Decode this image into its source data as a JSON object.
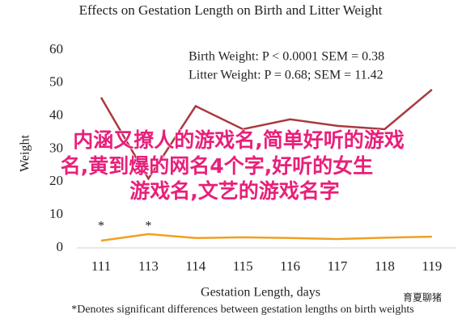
{
  "chart_data": {
    "type": "line",
    "title": "Effects on Gestation Length on Birth and Litter Weight",
    "x_label": "Gestation Length, days",
    "y_label": "Weight",
    "footnote": "*Denotes significant differences between gestation lengths on birth weights",
    "categories": [
      "111",
      "113",
      "114",
      "115",
      "116",
      "117",
      "118",
      "119"
    ],
    "series": [
      {
        "name": "Birth Weight",
        "color": "#f0a020",
        "values": [
          2.2,
          4.2,
          3,
          3.2,
          3,
          2.7,
          3.1,
          3.4
        ]
      },
      {
        "name": "Litter Weight",
        "color": "#a93a3f",
        "values": [
          45.6,
          21,
          43,
          36,
          39,
          37,
          36,
          48
        ]
      }
    ],
    "annotations": [
      {
        "text": "Birth Weight: P < 0.0001 SEM = 0.38"
      },
      {
        "text": "Litter Weight: P = 0.68; SEM = 11.42"
      },
      {
        "text": "*",
        "x": "111"
      },
      {
        "text": "*",
        "x": "113"
      }
    ],
    "ylim": [
      0,
      60
    ],
    "yticks": [
      0,
      10,
      20,
      30,
      40,
      50,
      60
    ],
    "grid": false
  },
  "overlay": {
    "lines": [
      "内涵又撩人的游戏名,简单好听的游戏",
      "名,黄到爆的网名4个字,好听的女生",
      "游戏名,文艺的游戏名字"
    ],
    "watermark": "育夏聊猪"
  }
}
